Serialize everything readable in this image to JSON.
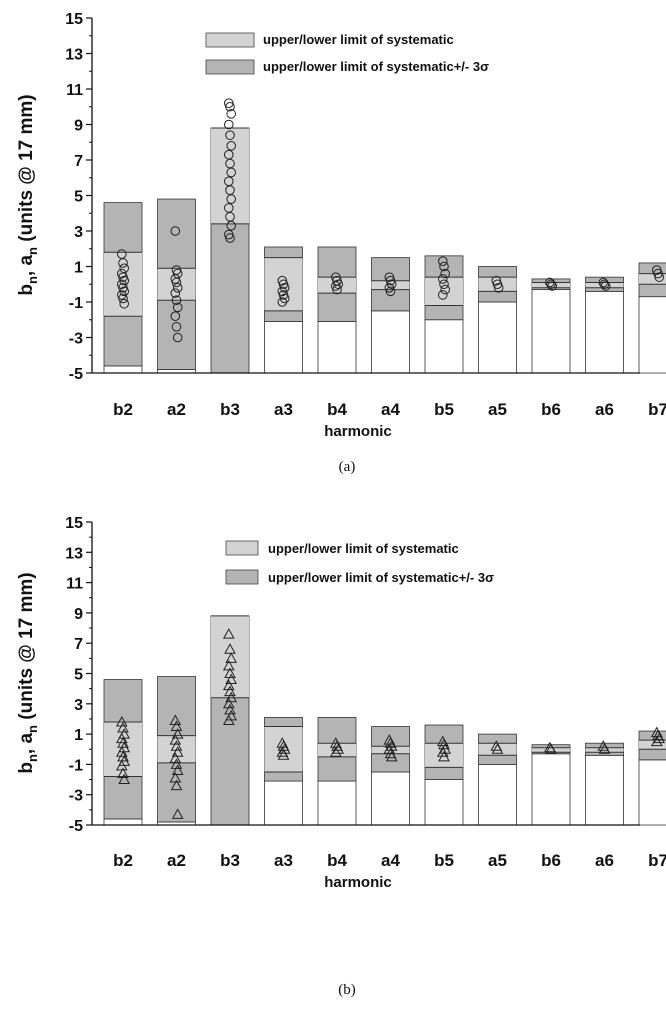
{
  "chart_data": [
    {
      "type": "bar",
      "panel_caption": "(a)",
      "marker": "circle",
      "xlabel": "harmonic",
      "ylabel": "b_n, a_n (units @ 17 mm)",
      "ylim": [
        -5,
        15
      ],
      "yticks": [
        -5,
        -3,
        -1,
        1,
        3,
        5,
        7,
        9,
        11,
        13,
        15
      ],
      "grid": false,
      "legend_position": "top-right",
      "legend": [
        "upper/lower limit of systematic",
        "upper/lower limit of systematic+/- 3σ"
      ],
      "categories": [
        "b2",
        "a2",
        "b3",
        "a3",
        "b4",
        "a4",
        "b5",
        "a5",
        "b6",
        "a6",
        "b7"
      ],
      "series": [
        {
          "name": "upper/lower limit of systematic",
          "lower": [
            -1.8,
            -0.9,
            3.4,
            -1.5,
            -0.5,
            -0.3,
            -1.2,
            -0.4,
            -0.2,
            -0.2,
            0.0
          ],
          "upper": [
            1.8,
            0.9,
            8.8,
            1.5,
            0.4,
            0.2,
            0.4,
            0.4,
            0.1,
            0.1,
            0.6
          ]
        },
        {
          "name": "upper/lower limit of systematic+/- 3σ",
          "lower": [
            -4.6,
            -4.8,
            -5.0,
            -2.1,
            -2.1,
            -1.5,
            -2.0,
            -1.0,
            -0.3,
            -0.4,
            -0.7
          ],
          "upper": [
            4.6,
            4.8,
            8.8,
            2.1,
            2.1,
            1.5,
            1.6,
            1.0,
            0.3,
            0.4,
            1.2
          ]
        }
      ],
      "measurements": [
        [
          1.7,
          1.2,
          0.9,
          0.6,
          0.4,
          0.2,
          0.0,
          -0.2,
          -0.4,
          -0.6,
          -0.8,
          -1.1
        ],
        [
          3.0,
          0.8,
          0.6,
          0.3,
          0.1,
          -0.2,
          -0.5,
          -0.9,
          -1.3,
          -1.8,
          -2.4,
          -3.0
        ],
        [
          10.2,
          10.0,
          9.6,
          9.0,
          8.4,
          7.8,
          7.3,
          6.8,
          6.3,
          5.8,
          5.3,
          4.8,
          4.3,
          3.8,
          3.3,
          2.8,
          2.6
        ],
        [
          0.2,
          0.0,
          -0.2,
          -0.4,
          -0.6,
          -0.8,
          -1.0
        ],
        [
          0.4,
          0.2,
          0.0,
          -0.1,
          -0.3
        ],
        [
          0.4,
          0.2,
          0.0,
          -0.2,
          -0.4
        ],
        [
          1.3,
          1.0,
          0.6,
          0.3,
          0.0,
          -0.3,
          -0.6
        ],
        [
          0.2,
          0.0,
          -0.2
        ],
        [
          0.1,
          0.0,
          -0.1
        ],
        [
          0.1,
          0.0,
          -0.1
        ],
        [
          0.8,
          0.6,
          0.4
        ]
      ]
    },
    {
      "type": "bar",
      "panel_caption": "(b)",
      "marker": "triangle",
      "xlabel": "harmonic",
      "ylabel": "b_n, a_n (units @ 17 mm)",
      "ylim": [
        -5,
        15
      ],
      "yticks": [
        -5,
        -3,
        -1,
        1,
        3,
        5,
        7,
        9,
        11,
        13,
        15
      ],
      "grid": false,
      "legend_position": "top-right",
      "legend": [
        "upper/lower limit of systematic",
        "upper/lower limit of systematic+/- 3σ"
      ],
      "categories": [
        "b2",
        "a2",
        "b3",
        "a3",
        "b4",
        "a4",
        "b5",
        "a5",
        "b6",
        "a6",
        "b7"
      ],
      "series": [
        {
          "name": "upper/lower limit of systematic",
          "lower": [
            -1.8,
            -0.9,
            3.4,
            -1.5,
            -0.5,
            -0.3,
            -1.2,
            -0.4,
            -0.2,
            -0.2,
            0.0
          ],
          "upper": [
            1.8,
            0.9,
            8.8,
            1.5,
            0.4,
            0.2,
            0.4,
            0.4,
            0.1,
            0.1,
            0.6
          ]
        },
        {
          "name": "upper/lower limit of systematic+/- 3σ",
          "lower": [
            -4.6,
            -4.8,
            -5.0,
            -2.1,
            -2.1,
            -1.5,
            -2.0,
            -1.0,
            -0.3,
            -0.4,
            -0.7
          ],
          "upper": [
            4.6,
            4.8,
            8.8,
            2.1,
            2.1,
            1.5,
            1.6,
            1.0,
            0.3,
            0.4,
            1.2
          ]
        }
      ],
      "measurements": [
        [
          1.8,
          1.4,
          1.0,
          0.7,
          0.4,
          0.1,
          -0.2,
          -0.5,
          -0.8,
          -1.1,
          -1.6,
          -2.0
        ],
        [
          1.9,
          1.5,
          1.0,
          0.6,
          0.2,
          -0.2,
          -0.6,
          -1.0,
          -1.4,
          -1.9,
          -2.4,
          -4.3
        ],
        [
          7.6,
          6.6,
          6.0,
          5.5,
          5.0,
          4.6,
          4.2,
          3.8,
          3.4,
          3.0,
          2.6,
          2.2,
          1.9
        ],
        [
          0.4,
          0.2,
          0.0,
          -0.2,
          -0.4
        ],
        [
          0.4,
          0.2,
          0.0,
          -0.2
        ],
        [
          0.6,
          0.4,
          0.2,
          0.0,
          -0.3,
          -0.5
        ],
        [
          0.5,
          0.3,
          0.0,
          -0.2,
          -0.5
        ],
        [
          0.2,
          0.0
        ],
        [
          0.1,
          0.0
        ],
        [
          0.2,
          0.0
        ],
        [
          1.1,
          0.9,
          0.7,
          0.5
        ]
      ]
    }
  ]
}
